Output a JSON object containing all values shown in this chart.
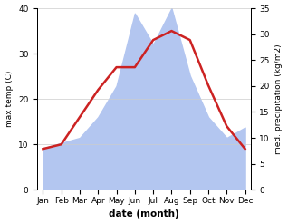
{
  "months": [
    "Jan",
    "Feb",
    "Mar",
    "Apr",
    "May",
    "Jun",
    "Jul",
    "Aug",
    "Sep",
    "Oct",
    "Nov",
    "Dec"
  ],
  "temp_max": [
    9,
    10,
    16,
    22,
    27,
    27,
    33,
    35,
    33,
    23,
    14,
    9
  ],
  "precipitation": [
    8,
    9,
    10,
    14,
    20,
    34,
    28,
    35,
    22,
    14,
    10,
    12
  ],
  "temp_color": "#cc2222",
  "precip_color": "#b3c6f0",
  "temp_ylim": [
    0,
    40
  ],
  "precip_ylim": [
    0,
    35
  ],
  "temp_yticks": [
    0,
    10,
    20,
    30,
    40
  ],
  "precip_yticks": [
    0,
    5,
    10,
    15,
    20,
    25,
    30,
    35
  ],
  "xlabel": "date (month)",
  "ylabel_left": "max temp (C)",
  "ylabel_right": "med. precipitation (kg/m2)",
  "grid_color": "#cccccc"
}
